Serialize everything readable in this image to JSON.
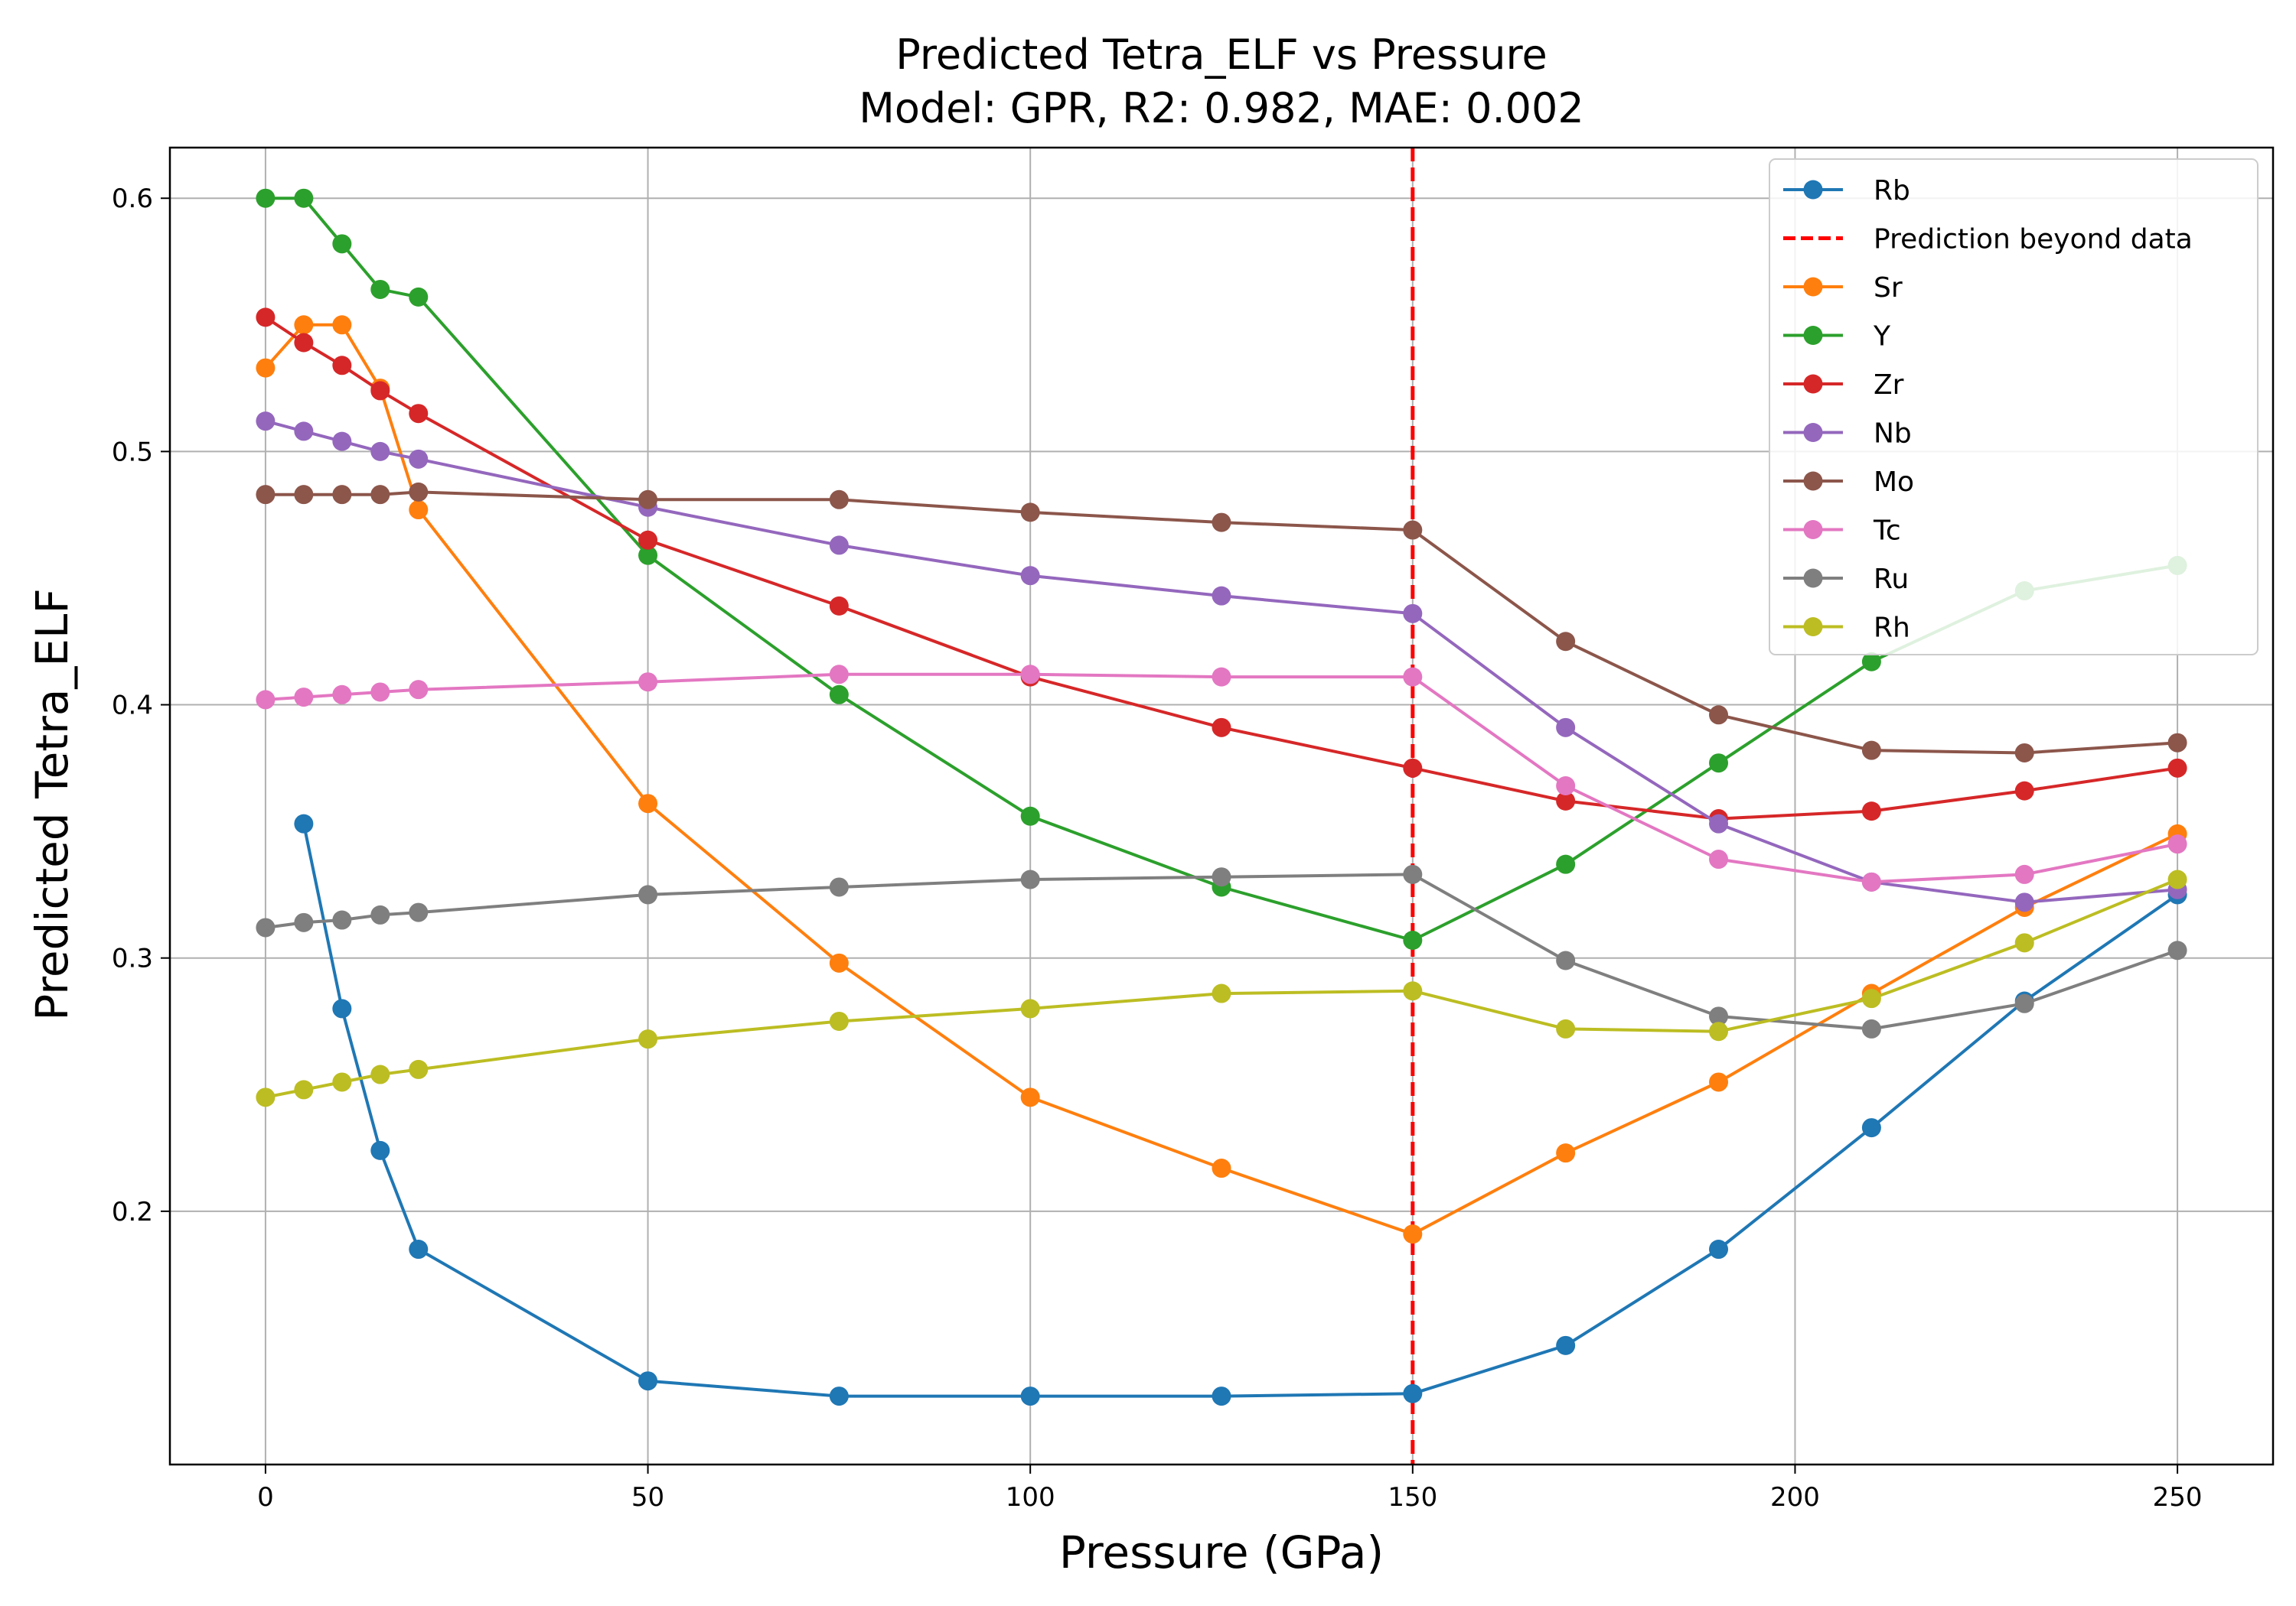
{
  "chart_data": {
    "type": "line",
    "title": "Predicted Tetra_ELF vs Pressure",
    "subtitle": "Model: GPR, R2: 0.982, MAE: 0.002",
    "xlabel": "Pressure (GPa)",
    "ylabel": "Predicted Tetra_ELF",
    "xlim": [
      -12.5,
      262.5
    ],
    "ylim": [
      0.1,
      0.62
    ],
    "xticks": [
      0,
      50,
      100,
      150,
      200,
      250
    ],
    "yticks": [
      0.2,
      0.3,
      0.4,
      0.5,
      0.6
    ],
    "xtick_labels": [
      "0",
      "50",
      "100",
      "150",
      "200",
      "250"
    ],
    "ytick_labels": [
      "0.2",
      "0.3",
      "0.4",
      "0.5",
      "0.6"
    ],
    "grid": true,
    "legend_position": "top-right",
    "vline": {
      "x": 150,
      "label": "Prediction beyond data",
      "color": "#ff0000",
      "style": "dashed"
    },
    "legend_order": [
      "Rb",
      "Prediction beyond data",
      "Sr",
      "Y",
      "Zr",
      "Nb",
      "Mo",
      "Tc",
      "Ru",
      "Rh"
    ],
    "series": [
      {
        "name": "Rb",
        "color": "#1f77b4",
        "x": [
          5,
          10,
          15,
          20,
          50,
          75,
          100,
          125,
          150,
          170,
          190,
          210,
          230,
          250
        ],
        "y": [
          0.353,
          0.28,
          0.224,
          0.185,
          0.133,
          0.127,
          0.127,
          0.127,
          0.128,
          0.147,
          0.185,
          0.233,
          0.283,
          0.325
        ]
      },
      {
        "name": "Sr",
        "color": "#ff7f0e",
        "x": [
          0,
          5,
          10,
          15,
          20,
          50,
          75,
          100,
          125,
          150,
          170,
          190,
          210,
          230,
          250
        ],
        "y": [
          0.533,
          0.55,
          0.55,
          0.525,
          0.477,
          0.361,
          0.298,
          0.245,
          0.217,
          0.191,
          0.223,
          0.251,
          0.286,
          0.32,
          0.349
        ]
      },
      {
        "name": "Y",
        "color": "#2ca02c",
        "x": [
          0,
          5,
          10,
          15,
          20,
          50,
          75,
          100,
          125,
          150,
          170,
          190,
          210,
          230,
          250
        ],
        "y": [
          0.6,
          0.6,
          0.582,
          0.564,
          0.561,
          0.459,
          0.404,
          0.356,
          0.328,
          0.307,
          0.337,
          0.377,
          0.417,
          0.445,
          0.455
        ]
      },
      {
        "name": "Zr",
        "color": "#d62728",
        "x": [
          0,
          5,
          10,
          15,
          20,
          50,
          75,
          100,
          125,
          150,
          170,
          190,
          210,
          230,
          250
        ],
        "y": [
          0.553,
          0.543,
          0.534,
          0.524,
          0.515,
          0.465,
          0.439,
          0.411,
          0.391,
          0.375,
          0.362,
          0.355,
          0.358,
          0.366,
          0.375
        ]
      },
      {
        "name": "Nb",
        "color": "#9467bd",
        "x": [
          0,
          5,
          10,
          15,
          20,
          50,
          75,
          100,
          125,
          150,
          170,
          190,
          210,
          230,
          250
        ],
        "y": [
          0.512,
          0.508,
          0.504,
          0.5,
          0.497,
          0.478,
          0.463,
          0.451,
          0.443,
          0.436,
          0.391,
          0.353,
          0.33,
          0.322,
          0.327
        ]
      },
      {
        "name": "Mo",
        "color": "#8c564b",
        "x": [
          0,
          5,
          10,
          15,
          20,
          50,
          75,
          100,
          125,
          150,
          170,
          190,
          210,
          230,
          250
        ],
        "y": [
          0.483,
          0.483,
          0.483,
          0.483,
          0.484,
          0.481,
          0.481,
          0.476,
          0.472,
          0.469,
          0.425,
          0.396,
          0.382,
          0.381,
          0.385
        ]
      },
      {
        "name": "Tc",
        "color": "#e377c2",
        "x": [
          0,
          5,
          10,
          15,
          20,
          50,
          75,
          100,
          125,
          150,
          170,
          190,
          210,
          230,
          250
        ],
        "y": [
          0.402,
          0.403,
          0.404,
          0.405,
          0.406,
          0.409,
          0.412,
          0.412,
          0.411,
          0.411,
          0.368,
          0.339,
          0.33,
          0.333,
          0.345
        ]
      },
      {
        "name": "Ru",
        "color": "#7f7f7f",
        "x": [
          0,
          5,
          10,
          15,
          20,
          50,
          75,
          100,
          125,
          150,
          170,
          190,
          210,
          230,
          250
        ],
        "y": [
          0.312,
          0.314,
          0.315,
          0.317,
          0.318,
          0.325,
          0.328,
          0.331,
          0.332,
          0.333,
          0.299,
          0.277,
          0.272,
          0.282,
          0.303
        ]
      },
      {
        "name": "Rh",
        "color": "#bcbd22",
        "x": [
          0,
          5,
          10,
          15,
          20,
          50,
          75,
          100,
          125,
          150,
          170,
          190,
          210,
          230,
          250
        ],
        "y": [
          0.245,
          0.248,
          0.251,
          0.254,
          0.256,
          0.268,
          0.275,
          0.28,
          0.286,
          0.287,
          0.272,
          0.271,
          0.284,
          0.306,
          0.331
        ]
      }
    ]
  }
}
